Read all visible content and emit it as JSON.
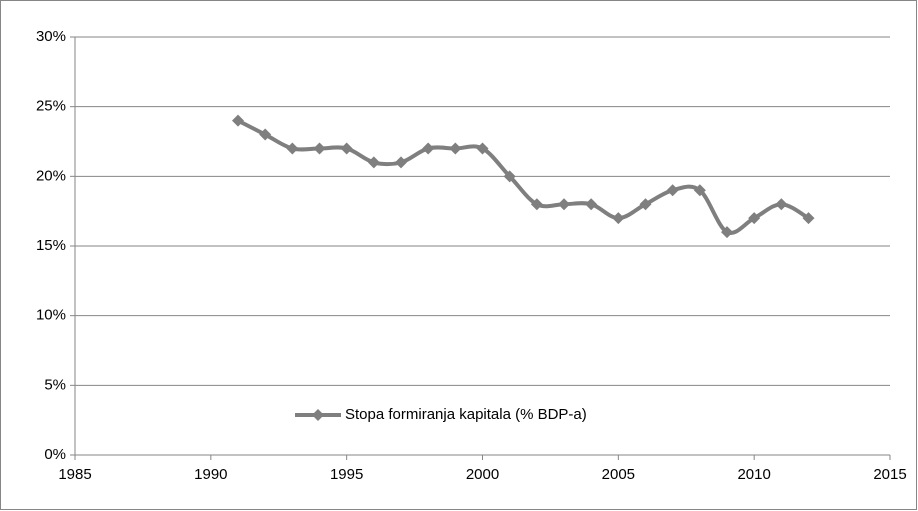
{
  "chart_data": {
    "type": "line",
    "x": [
      1991,
      1992,
      1993,
      1994,
      1995,
      1996,
      1997,
      1998,
      1999,
      2000,
      2001,
      2002,
      2003,
      2004,
      2005,
      2006,
      2007,
      2008,
      2009,
      2010,
      2011,
      2012
    ],
    "series": [
      {
        "name": "Stopa formiranja kapitala (% BDP-a)",
        "color": "#7f7f7f",
        "values": [
          24,
          23,
          22,
          22,
          22,
          21,
          21,
          22,
          22,
          22,
          20,
          18,
          18,
          18,
          17,
          18,
          19,
          19,
          16,
          17,
          18,
          17
        ]
      }
    ],
    "xlim": [
      1985,
      2015
    ],
    "xticks": [
      1985,
      1990,
      1995,
      2000,
      2005,
      2010,
      2015
    ],
    "ylim": [
      0,
      30
    ],
    "yticks": [
      {
        "value": 0,
        "label": "0%"
      },
      {
        "value": 5,
        "label": "5%"
      },
      {
        "value": 10,
        "label": "10%"
      },
      {
        "value": 15,
        "label": "15%"
      },
      {
        "value": 20,
        "label": "20%"
      },
      {
        "value": 25,
        "label": "25%"
      },
      {
        "value": 30,
        "label": "30%"
      }
    ],
    "grid": true,
    "smooth": true
  }
}
